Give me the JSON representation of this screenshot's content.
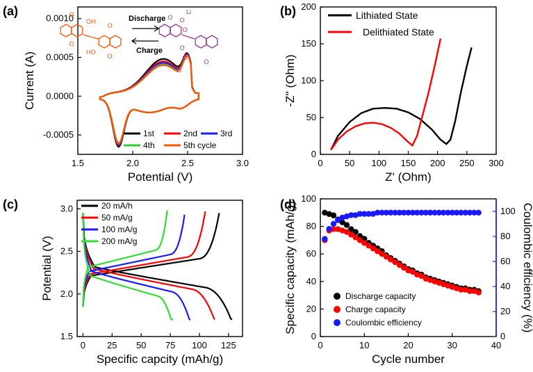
{
  "chart_data": [
    {
      "panel": "(a)",
      "type": "line",
      "xlabel": "Potential (V)",
      "ylabel": "Current (A)",
      "xlim": [
        1.5,
        3.0
      ],
      "ylim": [
        -0.00075,
        0.00115
      ],
      "xticks": [
        1.5,
        2.0,
        2.5,
        3.0
      ],
      "xtick_labels": [
        "1.5",
        "2.0",
        "2.5",
        "3.0"
      ],
      "yticks": [
        -0.0005,
        0.0,
        0.0005,
        0.001
      ],
      "ytick_labels": [
        "-0.0005",
        "0.0000",
        "0.0005",
        "0.0010"
      ],
      "legend": "bottom-right",
      "series": [
        {
          "name": "1st",
          "color": "#000000",
          "peak_shift": 0.0
        },
        {
          "name": "2nd",
          "color": "#ff0000",
          "peak_shift": -3e-05
        },
        {
          "name": "3rd",
          "color": "#1a1aff",
          "peak_shift": -5e-05
        },
        {
          "name": "4th",
          "color": "#33cc33",
          "peak_shift": -7e-05
        },
        {
          "name": "5th cycle",
          "color": "#ff5500",
          "peak_shift": -8e-05
        }
      ],
      "cv_shape": {
        "oxidation_peak": {
          "x": 2.28,
          "y": 0.00044
        },
        "oxidation_end": {
          "x": 2.58,
          "y": -3e-05
        },
        "reduction_peak": {
          "x": 1.87,
          "y": -0.00057
        },
        "x_range": [
          1.7,
          2.6
        ]
      },
      "inset": {
        "discharge": "Discharge",
        "charge": "Charge",
        "label_oh_top": "OH",
        "label_oh_bottom": "HO",
        "label_o": "O",
        "label_li": "Li"
      }
    },
    {
      "panel": "(b)",
      "type": "line",
      "xlabel": "Z' (Ohm)",
      "ylabel": "-Z'' (Ohm)",
      "xlim": [
        0,
        300
      ],
      "ylim": [
        0,
        200
      ],
      "xticks": [
        0,
        50,
        100,
        150,
        200,
        250,
        300
      ],
      "xtick_labels": [
        "0",
        "50",
        "100",
        "150",
        "200",
        "250",
        "300"
      ],
      "yticks": [
        0,
        50,
        100,
        150,
        200
      ],
      "ytick_labels": [
        "0",
        "50",
        "100",
        "150",
        "200"
      ],
      "legend": "top-left",
      "series": [
        {
          "name": "Lithiated State",
          "color": "#000000",
          "x": [
            18,
            30,
            50,
            70,
            90,
            110,
            130,
            150,
            170,
            190,
            205,
            215,
            222,
            230,
            240,
            250,
            258
          ],
          "y": [
            6,
            25,
            44,
            56,
            62,
            63,
            62,
            57,
            48,
            34,
            20,
            14,
            20,
            45,
            85,
            120,
            145
          ]
        },
        {
          "name": "Delithiated State",
          "color": "#ff0000",
          "x": [
            18,
            30,
            45,
            60,
            75,
            90,
            105,
            120,
            135,
            148,
            157,
            165,
            175,
            185,
            195,
            205
          ],
          "y": [
            6,
            20,
            31,
            38,
            42,
            43,
            41,
            36,
            28,
            18,
            12,
            25,
            55,
            85,
            120,
            157
          ]
        }
      ]
    },
    {
      "panel": "(c)",
      "type": "line",
      "xlabel": "Specific capcity (mAh/g)",
      "ylabel": "Potential (V)",
      "xlim": [
        -5,
        137
      ],
      "ylim": [
        1.5,
        3.1
      ],
      "xticks": [
        0,
        25,
        50,
        75,
        100,
        125
      ],
      "xtick_labels": [
        "0",
        "25",
        "50",
        "75",
        "100",
        "125"
      ],
      "yticks": [
        1.5,
        2.0,
        2.5,
        3.0
      ],
      "ytick_labels": [
        "1.5",
        "2.0",
        "2.5",
        "3.0"
      ],
      "legend": "top-left",
      "series": [
        {
          "name": "20 mA/h",
          "color": "#000000",
          "capacity": 128,
          "charge_capacity": 117,
          "polarization": 0.0
        },
        {
          "name": "50 mA/g",
          "color": "#ff0000",
          "capacity": 114,
          "charge_capacity": 105,
          "polarization": 0.02
        },
        {
          "name": "100 mA/g",
          "color": "#1a1aff",
          "capacity": 93,
          "charge_capacity": 88,
          "polarization": 0.05
        },
        {
          "name": "200 mA/g",
          "color": "#33dd33",
          "capacity": 78,
          "charge_capacity": 73,
          "polarization": 0.1
        }
      ]
    },
    {
      "panel": "(d)",
      "type": "scatter",
      "xlabel": "Cycle number",
      "ylabel": "Specific capacity (mAh/g)",
      "ylabel_right": "Coulombic efficiency (%)",
      "xlim": [
        0,
        40
      ],
      "ylim": [
        0,
        100
      ],
      "ylim_right": [
        0,
        110
      ],
      "xticks": [
        0,
        10,
        20,
        30,
        40
      ],
      "xtick_labels": [
        "0",
        "10",
        "20",
        "30",
        "40"
      ],
      "yticks": [
        0,
        20,
        40,
        60,
        80,
        100
      ],
      "ytick_labels": [
        "0",
        "20",
        "40",
        "60",
        "80",
        "100"
      ],
      "yticks_right": [
        0,
        20,
        40,
        60,
        80,
        100
      ],
      "ytick_labels_right": [
        "0",
        "20",
        "40",
        "60",
        "80",
        "100"
      ],
      "legend": "bottom-left",
      "series": [
        {
          "name": "Discharge capacity",
          "color": "#000000",
          "axis": "left",
          "x": [
            1,
            2,
            3,
            4,
            5,
            6,
            7,
            8,
            9,
            10,
            11,
            12,
            13,
            14,
            15,
            16,
            17,
            18,
            19,
            20,
            21,
            22,
            23,
            24,
            25,
            26,
            27,
            28,
            29,
            30,
            31,
            32,
            33,
            34,
            35,
            36
          ],
          "y": [
            90,
            89,
            88,
            85,
            83,
            81,
            78,
            76,
            73,
            71,
            68,
            66,
            64,
            62,
            59,
            57,
            55,
            53,
            51,
            49,
            48,
            46,
            45,
            43,
            42,
            41,
            40,
            39,
            38,
            37,
            36,
            35,
            35,
            34,
            34,
            33
          ]
        },
        {
          "name": "Charge capacity",
          "color": "#ff0000",
          "axis": "left",
          "x": [
            1,
            2,
            3,
            4,
            5,
            6,
            7,
            8,
            9,
            10,
            11,
            12,
            13,
            14,
            15,
            16,
            17,
            18,
            19,
            20,
            21,
            22,
            23,
            24,
            25,
            26,
            27,
            28,
            29,
            30,
            31,
            32,
            33,
            34,
            35,
            36
          ],
          "y": [
            70,
            77,
            78,
            78,
            77,
            76,
            74,
            72,
            70,
            68,
            66,
            64,
            62,
            60,
            58,
            56,
            54,
            52,
            50,
            48,
            47,
            45,
            44,
            42,
            41,
            40,
            39,
            38,
            37,
            36,
            35,
            34,
            34,
            33,
            33,
            32
          ]
        },
        {
          "name": "Coulombic efficiency",
          "color": "#1a1aff",
          "axis": "right",
          "x": [
            1,
            2,
            3,
            4,
            5,
            6,
            7,
            8,
            9,
            10,
            11,
            12,
            13,
            14,
            15,
            16,
            17,
            18,
            19,
            20,
            21,
            22,
            23,
            24,
            25,
            26,
            27,
            28,
            29,
            30,
            31,
            32,
            33,
            34,
            35,
            36
          ],
          "y": [
            78,
            86,
            90,
            93,
            95,
            96,
            97,
            97,
            98,
            98,
            98,
            98,
            99,
            99,
            99,
            99,
            99,
            99,
            99,
            99,
            99,
            99,
            99,
            99,
            99,
            99,
            99,
            99,
            99,
            99,
            99,
            99,
            99,
            99,
            99,
            99
          ]
        }
      ]
    }
  ]
}
